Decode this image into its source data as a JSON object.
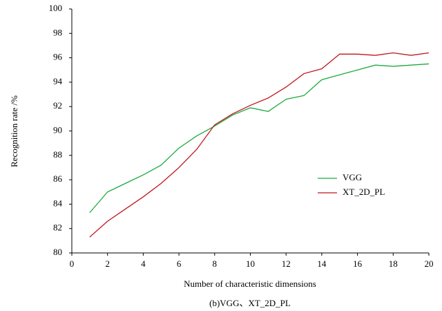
{
  "chart_data": {
    "type": "line",
    "x_label": "Number of characteristic dimensions",
    "y_label": "Recognition rate /%",
    "caption": "(b)VGG、XT_2D_PL",
    "x": [
      1,
      2,
      3,
      4,
      5,
      6,
      7,
      8,
      9,
      10,
      11,
      12,
      13,
      14,
      15,
      16,
      17,
      18,
      19,
      20
    ],
    "series": [
      {
        "name": "VGG",
        "color": "#1aaa3c",
        "values": [
          83.3,
          85.0,
          85.7,
          86.4,
          87.2,
          88.6,
          89.6,
          90.4,
          91.3,
          91.9,
          91.6,
          92.6,
          92.9,
          94.2,
          94.6,
          95.0,
          95.4,
          95.3,
          95.4,
          95.5
        ]
      },
      {
        "name": "XT_2D_PL",
        "color": "#c0141c",
        "values": [
          81.3,
          82.6,
          83.6,
          84.6,
          85.7,
          87.0,
          88.5,
          90.5,
          91.4,
          92.1,
          92.7,
          93.6,
          94.7,
          95.1,
          96.3,
          96.3,
          96.2,
          96.4,
          96.2,
          96.4
        ]
      }
    ],
    "xlim": [
      0,
      20
    ],
    "xticks": [
      0,
      2,
      4,
      6,
      8,
      10,
      12,
      14,
      16,
      18,
      20
    ],
    "ylim": [
      80,
      100
    ],
    "yticks": [
      80,
      82,
      84,
      86,
      88,
      90,
      92,
      94,
      96,
      98,
      100
    ],
    "grid": false,
    "legend": "right"
  }
}
